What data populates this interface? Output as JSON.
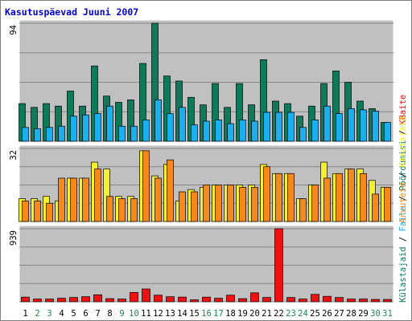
{
  "chart_data": {
    "type": "bar",
    "title": "Kasutuspäevad Juuni 2007",
    "categories": [
      "1",
      "2",
      "3",
      "4",
      "5",
      "6",
      "7",
      "8",
      "9",
      "10",
      "11",
      "12",
      "13",
      "14",
      "15",
      "16",
      "17",
      "18",
      "19",
      "20",
      "21",
      "22",
      "23",
      "24",
      "25",
      "26",
      "27",
      "28",
      "29",
      "30",
      "31"
    ],
    "weekend_days": [
      "2",
      "3",
      "9",
      "10",
      "16",
      "17",
      "23",
      "24",
      "30",
      "31"
    ],
    "panels": [
      {
        "id": "visits",
        "ymax": 94,
        "ymax_label": "94",
        "series": [
          {
            "name": "Külastajaid",
            "color": "#0f7a5a",
            "values": [
              30,
              27,
              30,
              28,
              40,
              28,
              60,
              36,
              31,
              33,
              62,
              94,
              52,
              48,
              35,
              29,
              46,
              27,
              46,
              29,
              65,
              32,
              30,
              20,
              28,
              46,
              56,
              47,
              32,
              26,
              15
            ]
          },
          {
            "name": "Faile",
            "color": "#1ab0f0",
            "values": [
              11,
              10,
              11,
              12,
              20,
              21,
              22,
              28,
              12,
              12,
              17,
              33,
              22,
              27,
              13,
              16,
              17,
              14,
              17,
              16,
              23,
              23,
              23,
              11,
              17,
              28,
              22,
              26,
              25,
              24,
              15
            ]
          }
        ]
      },
      {
        "id": "pages",
        "ymax": 32,
        "ymax_label": "32",
        "series": [
          {
            "name": "Kasutajaid",
            "color": "#f5f030",
            "values": [
              10,
              10,
              11,
              9,
              19,
              19,
              26,
              23,
              11,
              11,
              31,
              20,
              25,
              9,
              14,
              15,
              16,
              16,
              16,
              16,
              25,
              21,
              21,
              10,
              16,
              26,
              21,
              23,
              23,
              18,
              15
            ]
          },
          {
            "name": "Arvuteid",
            "color": "#f5891c",
            "values": [
              9,
              9,
              8,
              19,
              19,
              19,
              23,
              11,
              10,
              10,
              31,
              19,
              27,
              13,
              13,
              16,
              16,
              16,
              15,
              15,
              24,
              21,
              21,
              10,
              16,
              19,
              21,
              23,
              21,
              12,
              15
            ]
          }
        ]
      },
      {
        "id": "bytes",
        "ymax": 939,
        "ymax_label": "939",
        "series": [
          {
            "name": "KBaite",
            "color": "#ee1111",
            "values": [
              60,
              35,
              35,
              45,
              55,
              65,
              90,
              40,
              35,
              120,
              165,
              85,
              65,
              60,
              25,
              60,
              45,
              85,
              40,
              115,
              55,
              939,
              55,
              35,
              95,
              70,
              55,
              35,
              35,
              30,
              30
            ]
          }
        ]
      }
    ],
    "legend": {
      "left": [
        {
          "text": "Arvuteid",
          "color": "#f5891c"
        },
        {
          "text": "Kasutajaid",
          "color": "#f5f030"
        }
      ],
      "right": [
        {
          "text": "Külastajaid",
          "color": "#0f7a5a"
        },
        {
          "text": "Faile",
          "color": "#1ab0f0"
        },
        {
          "text": "Pöördumisi",
          "color": "#0f7a5a"
        },
        {
          "text": "KBaite",
          "color": "#ee1111"
        }
      ],
      "separator": " / "
    }
  },
  "colors": {
    "background": "#ffffff",
    "panel_bg": "#c0c0c0",
    "panel_line": "#888888",
    "title": "#0000cc",
    "weekday_label": "#000000",
    "weekend_label": "#1a8a4a",
    "frame": "#808080"
  }
}
